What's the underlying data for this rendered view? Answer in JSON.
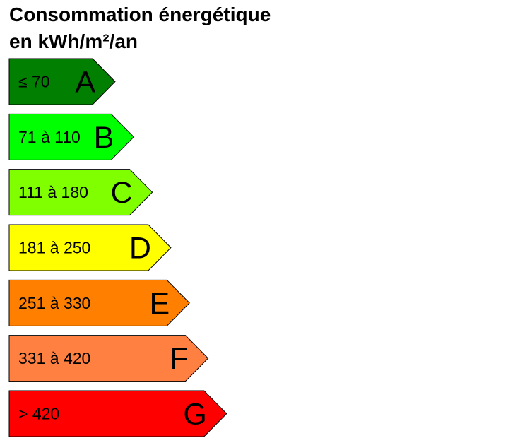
{
  "title": {
    "line1": "Consommation énergétique",
    "line2": "en kWh/m²/an"
  },
  "classes": [
    {
      "letter": "A",
      "range": "≤ 70",
      "color": "#007f00"
    },
    {
      "letter": "B",
      "range": "71 à 110",
      "color": "#00ff00"
    },
    {
      "letter": "C",
      "range": "111 à 180",
      "color": "#80ff00"
    },
    {
      "letter": "D",
      "range": "181 à 250",
      "color": "#ffff00"
    },
    {
      "letter": "E",
      "range": "251 à 330",
      "color": "#ff8000"
    },
    {
      "letter": "F",
      "range": "331 à 420",
      "color": "#ff8040"
    },
    {
      "letter": "G",
      "range": "> 420",
      "color": "#ff0000"
    }
  ]
}
